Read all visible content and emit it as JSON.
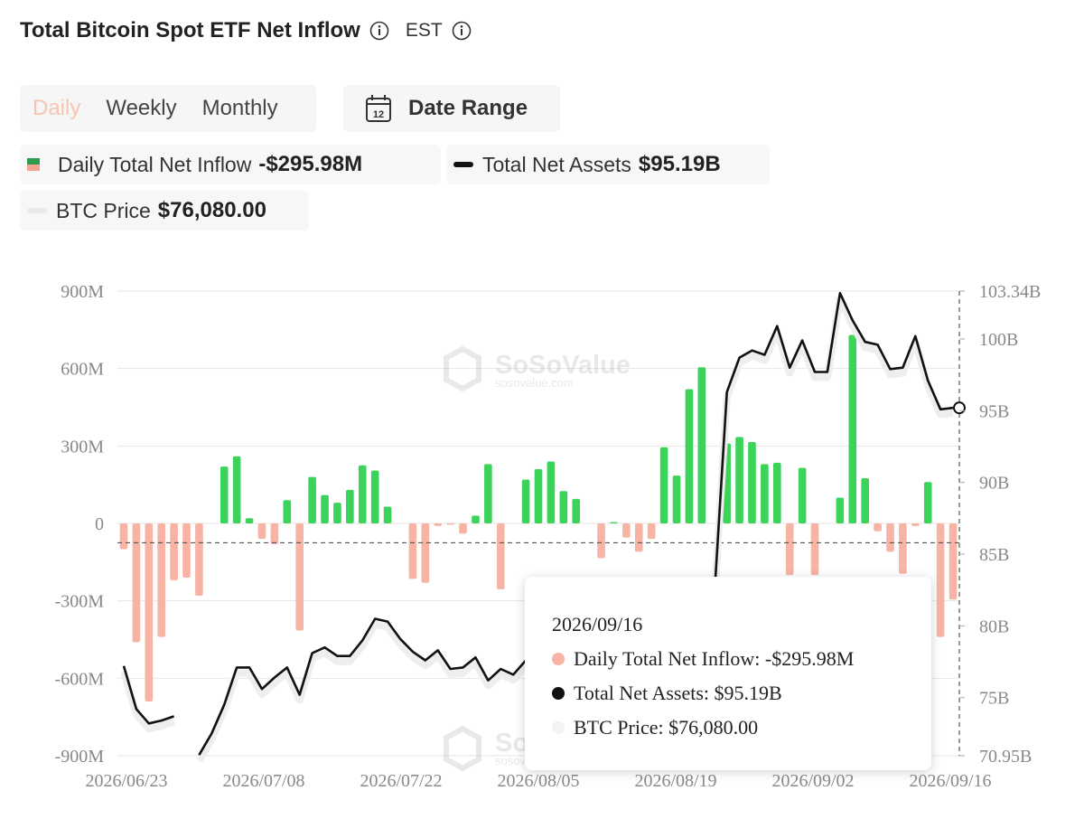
{
  "header": {
    "title": "Total Bitcoin Spot ETF Net Inflow",
    "timezone": "EST"
  },
  "period_tabs": [
    {
      "label": "Daily",
      "active": true
    },
    {
      "label": "Weekly",
      "active": false
    },
    {
      "label": "Monthly",
      "active": false
    }
  ],
  "date_range": {
    "label": "Date Range",
    "icon_text": "12"
  },
  "legend": {
    "inflow": {
      "label": "Daily Total Net Inflow",
      "value": "-$295.98M"
    },
    "assets": {
      "label": "Total Net Assets",
      "value": "$95.19B"
    },
    "price": {
      "label": "BTC Price",
      "value": "$76,080.00"
    }
  },
  "watermark": {
    "name": "SoSoValue",
    "site": "sosovalue.com"
  },
  "tooltip": {
    "date": "2026/09/16",
    "inflow": "Daily Total Net Inflow: -$295.98M",
    "assets": "Total Net Assets: $95.19B",
    "price": "BTC Price: $76,080.00"
  },
  "colors": {
    "positive": "#3cd35a",
    "negative": "#f7b4a4",
    "assets_line": "#111111",
    "price_line": "#eeeeee",
    "grid": "#e6e6e6"
  },
  "chart_data": {
    "type": "bar",
    "left_axis": {
      "ylim": [
        -900,
        900
      ],
      "ticks": [
        -900,
        -600,
        -300,
        0,
        300,
        600,
        900
      ],
      "tick_labels": [
        "-900M",
        "-600M",
        "-300M",
        "0",
        "300M",
        "600M",
        "900M"
      ]
    },
    "right_axis": {
      "ylim": [
        70.95,
        103.34
      ],
      "ticks": [
        70.95,
        75,
        80,
        85,
        90,
        95,
        100,
        103.34
      ],
      "tick_labels": [
        "70.95B",
        "75B",
        "80B",
        "85B",
        "90B",
        "95B",
        "100B",
        "103.34B"
      ]
    },
    "x_tick_labels": [
      "2026/06/23",
      "2026/07/08",
      "2026/07/22",
      "2026/08/05",
      "2026/08/19",
      "2026/09/02",
      "2026/09/16"
    ],
    "current_value_line": -75,
    "series": [
      {
        "name": "Daily Total Net Inflow",
        "type": "bar",
        "values": [
          -100,
          -460,
          -690,
          -440,
          -220,
          -210,
          -280,
          0,
          220,
          260,
          20,
          -60,
          -80,
          90,
          -415,
          180,
          110,
          80,
          130,
          225,
          205,
          65,
          0,
          -215,
          -230,
          -10,
          -5,
          -40,
          30,
          230,
          -255,
          0,
          170,
          210,
          240,
          125,
          95,
          0,
          -135,
          5,
          -55,
          -110,
          -60,
          295,
          185,
          520,
          605,
          0,
          310,
          335,
          315,
          230,
          235,
          -200,
          215,
          -200,
          0,
          100,
          730,
          175,
          -30,
          -110,
          -195,
          -10,
          160,
          -440,
          -295
        ]
      },
      {
        "name": "Total Net Assets",
        "type": "line",
        "values": [
          77.2,
          74.2,
          73.2,
          73.4,
          73.7,
          null,
          71.0,
          72.5,
          74.5,
          77.1,
          77.1,
          75.6,
          76.4,
          77.1,
          75.2,
          78.1,
          78.5,
          77.9,
          77.9,
          79.0,
          80.5,
          80.3,
          79.1,
          78.2,
          77.6,
          78.3,
          77.0,
          77.1,
          77.8,
          76.2,
          77.0,
          76.6,
          77.6,
          null,
          null,
          null,
          null,
          null,
          null,
          null,
          null,
          null,
          null,
          null,
          null,
          null,
          null,
          82.0,
          96.3,
          98.7,
          99.2,
          98.9,
          100.9,
          98.0,
          99.9,
          97.7,
          97.7,
          103.2,
          101.3,
          99.8,
          99.6,
          97.9,
          98.0,
          100.2,
          97.1,
          95.1,
          95.2
        ]
      },
      {
        "name": "BTC Price",
        "type": "line",
        "values": []
      }
    ]
  }
}
